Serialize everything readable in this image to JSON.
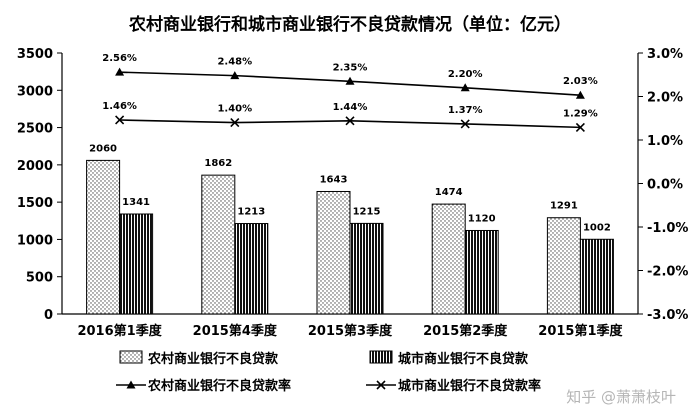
{
  "chart_data": {
    "type": "bar",
    "title": "农村商业银行和城市商业银行不良贷款情况（单位：亿元）",
    "categories": [
      "2016第1季度",
      "2015第4季度",
      "2015第3季度",
      "2015第2季度",
      "2015第1季度"
    ],
    "series": [
      {
        "name": "农村商业银行不良贷款",
        "type": "bar",
        "axis": "left",
        "values": [
          2060,
          1862,
          1643,
          1474,
          1291
        ],
        "pattern": "dotted"
      },
      {
        "name": "城市商业银行不良贷款",
        "type": "bar",
        "axis": "left",
        "values": [
          1341,
          1213,
          1215,
          1120,
          1002
        ],
        "pattern": "vertical-stripes"
      },
      {
        "name": "农村商业银行不良贷款率",
        "type": "line",
        "axis": "right",
        "values": [
          2.56,
          2.48,
          2.35,
          2.2,
          2.03
        ],
        "labels": [
          "2.56%",
          "2.48%",
          "2.35%",
          "2.20%",
          "2.03%"
        ],
        "marker": "triangle"
      },
      {
        "name": "城市商业银行不良贷款率",
        "type": "line",
        "axis": "right",
        "values": [
          1.46,
          1.4,
          1.44,
          1.37,
          1.29
        ],
        "labels": [
          "1.46%",
          "1.40%",
          "1.44%",
          "1.37%",
          "1.29%"
        ],
        "marker": "x"
      }
    ],
    "ylim": [
      0,
      3500
    ],
    "y_ticks": [
      "0",
      "500",
      "1000",
      "1500",
      "2000",
      "2500",
      "3000",
      "3500"
    ],
    "y2lim": [
      -3.0,
      3.0
    ],
    "y2_ticks": [
      "-3.0%",
      "-2.0%",
      "-1.0%",
      "0.0%",
      "1.0%",
      "2.0%",
      "3.0%"
    ],
    "grid": false,
    "legend_position": "bottom"
  },
  "watermark": "知乎 @萧萧枝叶"
}
